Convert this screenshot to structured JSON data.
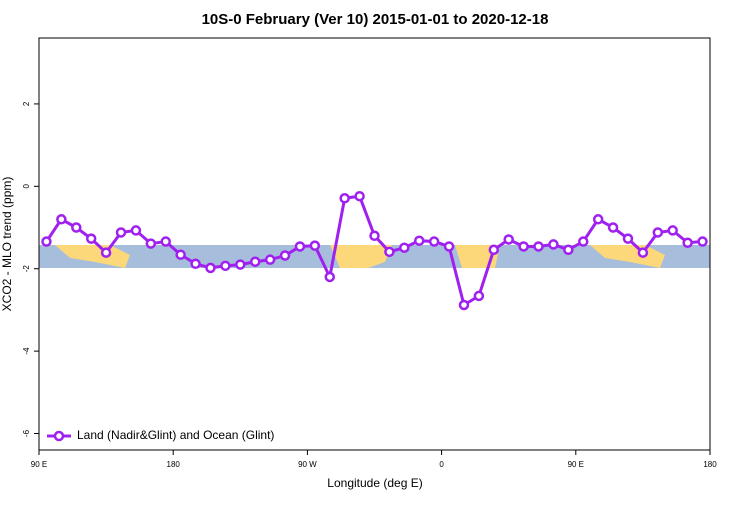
{
  "chart_data": {
    "type": "line",
    "title": "10S-0 February (Ver 10)   2015-01-01 to 2020-12-18",
    "x_label": "Longitude (deg E)",
    "y_label": "XCO2 - MLO trend (ppm)",
    "x": [
      95,
      105,
      115,
      125,
      135,
      145,
      155,
      165,
      175,
      185,
      195,
      205,
      215,
      225,
      235,
      245,
      255,
      265,
      275,
      285,
      295,
      305,
      315,
      325,
      335,
      345,
      355,
      365,
      375,
      385,
      395,
      405,
      415,
      425,
      435,
      445,
      455,
      465,
      475,
      485,
      495,
      505,
      515,
      525,
      535
    ],
    "series": [
      {
        "name": "Land (Nadir&Glint) and Ocean (Glint)",
        "color": "#a020f0",
        "values": [
          -1.34,
          -0.8,
          -1.0,
          -1.27,
          -1.61,
          -1.12,
          -1.07,
          -1.39,
          -1.34,
          -1.66,
          -1.88,
          -1.98,
          -1.93,
          -1.9,
          -1.83,
          -1.78,
          -1.68,
          -1.46,
          -1.44,
          -2.2,
          -0.29,
          -0.24,
          -1.2,
          -1.59,
          -1.49,
          -1.32,
          -1.34,
          -1.46,
          -2.88,
          -2.66,
          -1.54,
          -1.29,
          -1.46,
          -1.46,
          -1.41,
          -1.54,
          -1.34,
          -0.8,
          -1.0,
          -1.27,
          -1.61,
          -1.12,
          -1.07,
          -1.37,
          -1.34
        ]
      }
    ],
    "xlim": [
      90,
      540
    ],
    "ylim": [
      -6.4,
      3.6
    ],
    "xticks": [
      {
        "value": 90,
        "label": "90 E"
      },
      180,
      {
        "value": 270,
        "label": "90 W"
      },
      {
        "value": 360,
        "label": "0"
      },
      {
        "value": 450,
        "label": "90 E"
      },
      {
        "value": 540,
        "label": "180"
      }
    ],
    "yticks": [
      -6,
      -4,
      -2,
      0,
      2
    ],
    "legend": "bottom-left"
  }
}
